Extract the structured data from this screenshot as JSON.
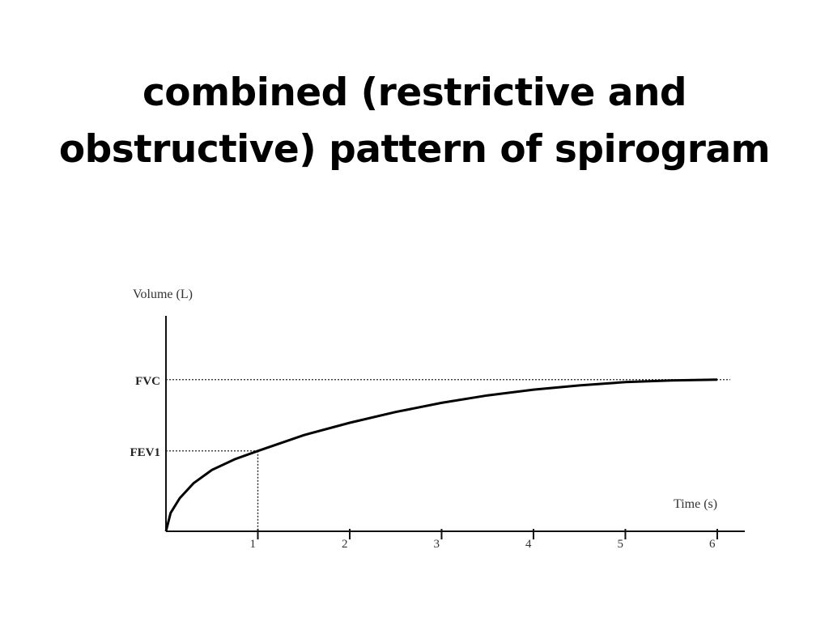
{
  "slide": {
    "title_line1": "combined (restrictive and",
    "title_line2": "obstructive) pattern of spirogram"
  },
  "chart_data": {
    "type": "line",
    "title": "combined (restrictive and obstructive) pattern of spirogram",
    "xlabel": "Time (s)",
    "ylabel": "Volume (L)",
    "xlim": [
      0,
      6.3
    ],
    "ylim": [
      0,
      2.6
    ],
    "x_ticks": [
      1,
      2,
      3,
      4,
      5,
      6
    ],
    "x_tick_labels": [
      "1",
      "2",
      "3",
      "4",
      "5",
      "6"
    ],
    "levels": [
      {
        "label": "FVC",
        "value": 1.83
      },
      {
        "label": "FEV1",
        "value": 0.97
      }
    ],
    "fev1_marker": {
      "x": 1,
      "y": 0.97
    },
    "grid": false,
    "legend": "none",
    "series": [
      {
        "color": "#000000",
        "x": [
          0,
          0.05,
          0.15,
          0.3,
          0.5,
          0.75,
          1.0,
          1.5,
          2.0,
          2.5,
          3.0,
          3.5,
          4.0,
          4.5,
          5.0,
          5.5,
          6.0
        ],
        "y": [
          0,
          0.22,
          0.4,
          0.58,
          0.74,
          0.87,
          0.97,
          1.16,
          1.31,
          1.44,
          1.55,
          1.64,
          1.71,
          1.76,
          1.8,
          1.82,
          1.83
        ]
      }
    ]
  }
}
